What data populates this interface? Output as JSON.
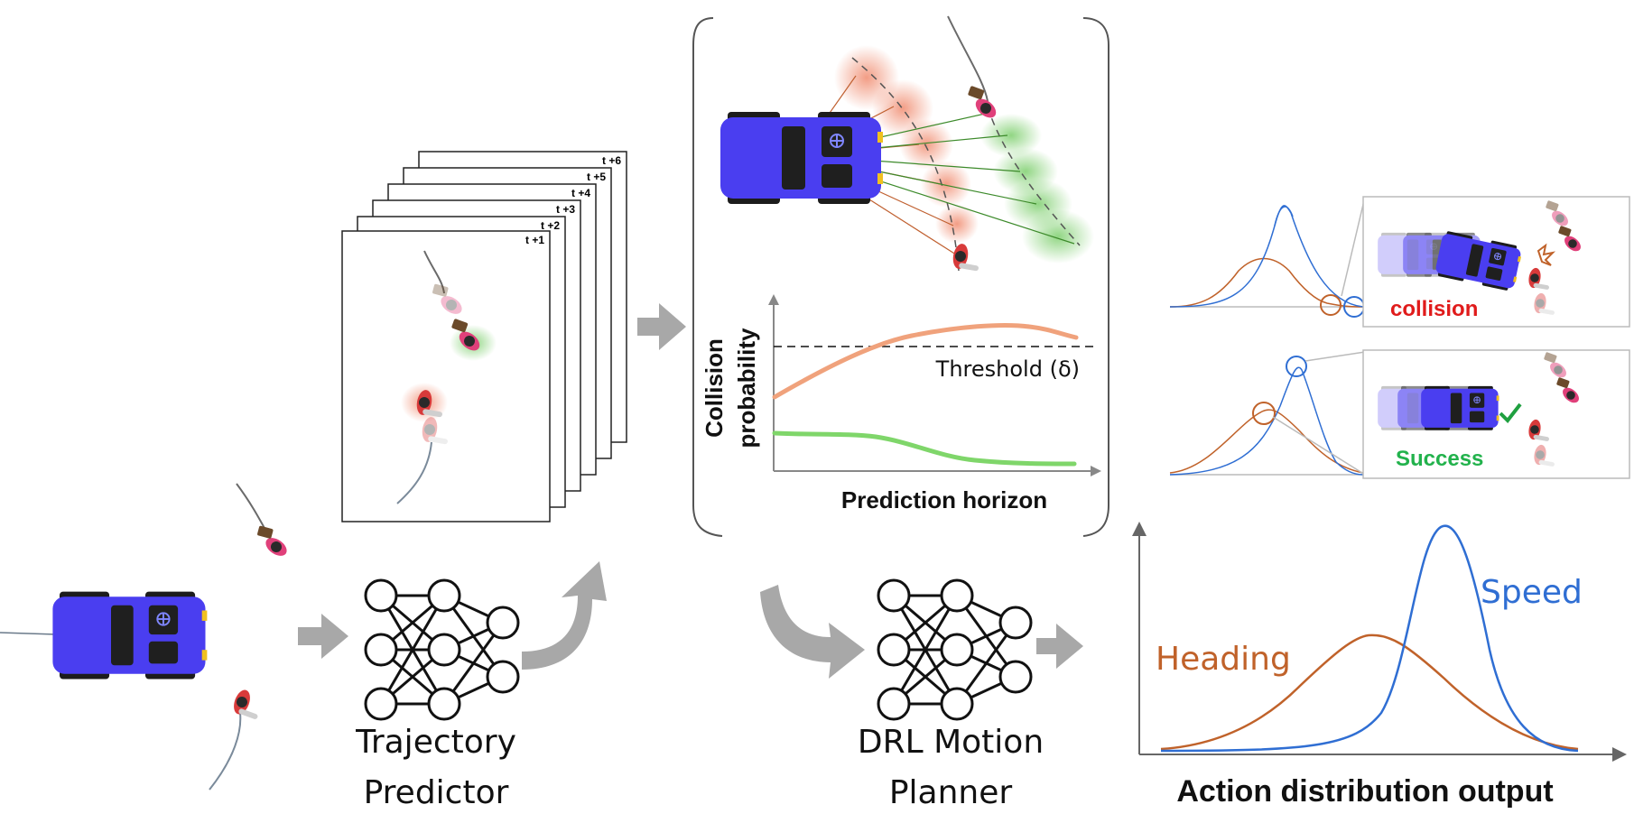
{
  "colors": {
    "robot_body": "#4a3ef0",
    "robot_dark": "#1f1f1f",
    "arrow_gray": "#a8a8a8",
    "collision_red": "#e01b1b",
    "success_green": "#22b24c",
    "heading_curve": "#c0622a",
    "speed_curve": "#2f6ed3",
    "collision_curve": "#f0a27c",
    "safe_curve": "#7fd66a",
    "red_glow": "#f08a6a",
    "green_glow": "#7fd070"
  },
  "icons": [
    "robot-car-icon",
    "pedestrian-icon",
    "neural-network-icon",
    "arrow-right-icon",
    "curved-arrow-icon",
    "check-icon",
    "impact-burst-icon"
  ],
  "frames": {
    "labels": [
      "t +1",
      "t +2",
      "t +3",
      "t +4",
      "t +5",
      "t +6"
    ]
  },
  "predictor": {
    "label_line1": "Trajectory",
    "label_line2": "Predictor"
  },
  "planner": {
    "label_line1": "DRL Motion",
    "label_line2": "Planner"
  },
  "risk_plot": {
    "ylabel_line1": "Collision",
    "ylabel_line2": "probability",
    "xlabel": "Prediction horizon",
    "threshold_label": "Threshold (δ)"
  },
  "outcomes": {
    "collision_label": "collision",
    "success_label": "Success"
  },
  "action_plot": {
    "heading_label": "Heading",
    "speed_label": "Speed",
    "caption": "Action distribution output"
  }
}
